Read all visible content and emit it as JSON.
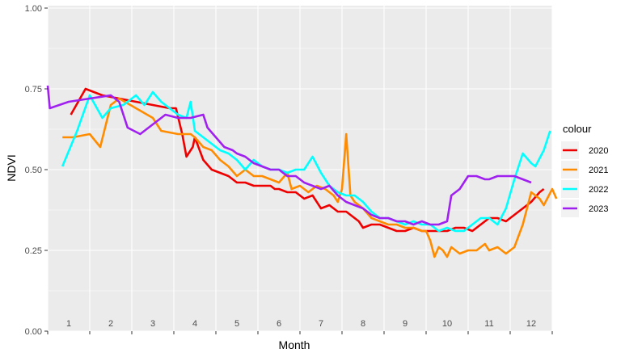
{
  "chart_data": {
    "type": "line",
    "xlabel": "Month",
    "ylabel": "NDVI",
    "xlim": [
      0.5,
      12.5
    ],
    "ylim": [
      0,
      1
    ],
    "x_ticks": [
      1,
      2,
      3,
      4,
      5,
      6,
      7,
      8,
      9,
      10,
      11,
      12
    ],
    "x_tick_labels": [
      "1",
      "2",
      "3",
      "4",
      "5",
      "6",
      "7",
      "8",
      "9",
      "10",
      "11",
      "12"
    ],
    "y_ticks": [
      0,
      0.25,
      0.5,
      0.75,
      1
    ],
    "y_tick_labels": [
      "0.00",
      "0.25",
      "0.50",
      "0.75",
      "1.00"
    ],
    "grid": true,
    "legend": {
      "title": "colour",
      "position": "right"
    },
    "series": [
      {
        "name": "2020",
        "color": "#ee0000",
        "points": [
          [
            1.05,
            0.67
          ],
          [
            1.4,
            0.75
          ],
          [
            1.8,
            0.73
          ],
          [
            2.2,
            0.72
          ],
          [
            2.6,
            0.71
          ],
          [
            3.0,
            0.7
          ],
          [
            3.4,
            0.69
          ],
          [
            3.55,
            0.69
          ],
          [
            3.7,
            0.61
          ],
          [
            3.8,
            0.54
          ],
          [
            3.95,
            0.57
          ],
          [
            4.0,
            0.6
          ],
          [
            4.2,
            0.53
          ],
          [
            4.4,
            0.5
          ],
          [
            4.6,
            0.49
          ],
          [
            4.8,
            0.48
          ],
          [
            5.0,
            0.46
          ],
          [
            5.2,
            0.46
          ],
          [
            5.4,
            0.45
          ],
          [
            5.6,
            0.45
          ],
          [
            5.8,
            0.45
          ],
          [
            5.9,
            0.44
          ],
          [
            6.0,
            0.44
          ],
          [
            6.2,
            0.43
          ],
          [
            6.4,
            0.43
          ],
          [
            6.6,
            0.41
          ],
          [
            6.8,
            0.42
          ],
          [
            7.0,
            0.38
          ],
          [
            7.2,
            0.39
          ],
          [
            7.4,
            0.37
          ],
          [
            7.6,
            0.37
          ],
          [
            7.8,
            0.35
          ],
          [
            7.9,
            0.34
          ],
          [
            8.0,
            0.32
          ],
          [
            8.2,
            0.33
          ],
          [
            8.4,
            0.33
          ],
          [
            8.6,
            0.32
          ],
          [
            8.8,
            0.31
          ],
          [
            9.0,
            0.31
          ],
          [
            9.2,
            0.32
          ],
          [
            9.4,
            0.31
          ],
          [
            9.6,
            0.31
          ],
          [
            9.8,
            0.31
          ],
          [
            10.0,
            0.31
          ],
          [
            10.2,
            0.32
          ],
          [
            10.4,
            0.32
          ],
          [
            10.6,
            0.31
          ],
          [
            10.8,
            0.33
          ],
          [
            11.0,
            0.35
          ],
          [
            11.2,
            0.35
          ],
          [
            11.4,
            0.34
          ],
          [
            11.6,
            0.36
          ],
          [
            11.8,
            0.38
          ],
          [
            12.0,
            0.4
          ],
          [
            12.2,
            0.43
          ],
          [
            12.3,
            0.44
          ]
        ]
      },
      {
        "name": "2021",
        "color": "#ff8c00",
        "points": [
          [
            0.85,
            0.6
          ],
          [
            1.1,
            0.6
          ],
          [
            1.5,
            0.61
          ],
          [
            1.75,
            0.57
          ],
          [
            2.0,
            0.7
          ],
          [
            2.2,
            0.72
          ],
          [
            2.6,
            0.69
          ],
          [
            3.0,
            0.66
          ],
          [
            3.2,
            0.62
          ],
          [
            3.6,
            0.61
          ],
          [
            3.9,
            0.61
          ],
          [
            4.0,
            0.6
          ],
          [
            4.2,
            0.57
          ],
          [
            4.4,
            0.56
          ],
          [
            4.6,
            0.53
          ],
          [
            4.8,
            0.51
          ],
          [
            5.0,
            0.48
          ],
          [
            5.2,
            0.5
          ],
          [
            5.4,
            0.48
          ],
          [
            5.6,
            0.48
          ],
          [
            5.8,
            0.47
          ],
          [
            6.0,
            0.46
          ],
          [
            6.2,
            0.49
          ],
          [
            6.3,
            0.44
          ],
          [
            6.5,
            0.45
          ],
          [
            6.7,
            0.43
          ],
          [
            6.9,
            0.45
          ],
          [
            7.1,
            0.44
          ],
          [
            7.3,
            0.42
          ],
          [
            7.4,
            0.4
          ],
          [
            7.5,
            0.44
          ],
          [
            7.6,
            0.61
          ],
          [
            7.7,
            0.42
          ],
          [
            7.8,
            0.4
          ],
          [
            8.0,
            0.38
          ],
          [
            8.2,
            0.35
          ],
          [
            8.4,
            0.34
          ],
          [
            8.6,
            0.33
          ],
          [
            8.8,
            0.33
          ],
          [
            9.0,
            0.32
          ],
          [
            9.2,
            0.32
          ],
          [
            9.4,
            0.31
          ],
          [
            9.5,
            0.31
          ],
          [
            9.6,
            0.28
          ],
          [
            9.7,
            0.23
          ],
          [
            9.8,
            0.26
          ],
          [
            9.9,
            0.25
          ],
          [
            10.0,
            0.23
          ],
          [
            10.1,
            0.26
          ],
          [
            10.3,
            0.24
          ],
          [
            10.5,
            0.25
          ],
          [
            10.7,
            0.25
          ],
          [
            10.9,
            0.27
          ],
          [
            11.0,
            0.25
          ],
          [
            11.2,
            0.26
          ],
          [
            11.4,
            0.24
          ],
          [
            11.6,
            0.26
          ],
          [
            11.8,
            0.33
          ],
          [
            12.0,
            0.43
          ],
          [
            12.2,
            0.41
          ],
          [
            12.3,
            0.39
          ],
          [
            12.5,
            0.44
          ],
          [
            12.6,
            0.41
          ]
        ]
      },
      {
        "name": "2022",
        "color": "#00ffff",
        "points": [
          [
            0.85,
            0.51
          ],
          [
            1.2,
            0.62
          ],
          [
            1.5,
            0.73
          ],
          [
            1.8,
            0.66
          ],
          [
            2.0,
            0.69
          ],
          [
            2.3,
            0.7
          ],
          [
            2.6,
            0.73
          ],
          [
            2.8,
            0.7
          ],
          [
            3.0,
            0.74
          ],
          [
            3.2,
            0.71
          ],
          [
            3.4,
            0.69
          ],
          [
            3.6,
            0.67
          ],
          [
            3.8,
            0.66
          ],
          [
            3.9,
            0.71
          ],
          [
            4.0,
            0.62
          ],
          [
            4.2,
            0.6
          ],
          [
            4.4,
            0.58
          ],
          [
            4.6,
            0.56
          ],
          [
            4.8,
            0.55
          ],
          [
            5.0,
            0.53
          ],
          [
            5.2,
            0.5
          ],
          [
            5.4,
            0.53
          ],
          [
            5.6,
            0.51
          ],
          [
            5.8,
            0.5
          ],
          [
            6.0,
            0.5
          ],
          [
            6.2,
            0.49
          ],
          [
            6.4,
            0.5
          ],
          [
            6.6,
            0.5
          ],
          [
            6.8,
            0.54
          ],
          [
            7.0,
            0.49
          ],
          [
            7.2,
            0.45
          ],
          [
            7.4,
            0.43
          ],
          [
            7.6,
            0.42
          ],
          [
            7.8,
            0.42
          ],
          [
            8.0,
            0.4
          ],
          [
            8.2,
            0.37
          ],
          [
            8.4,
            0.35
          ],
          [
            8.6,
            0.35
          ],
          [
            8.8,
            0.34
          ],
          [
            9.0,
            0.33
          ],
          [
            9.2,
            0.34
          ],
          [
            9.4,
            0.33
          ],
          [
            9.6,
            0.33
          ],
          [
            9.8,
            0.31
          ],
          [
            10.0,
            0.32
          ],
          [
            10.2,
            0.31
          ],
          [
            10.4,
            0.31
          ],
          [
            10.6,
            0.33
          ],
          [
            10.8,
            0.35
          ],
          [
            11.0,
            0.35
          ],
          [
            11.2,
            0.33
          ],
          [
            11.4,
            0.38
          ],
          [
            11.6,
            0.47
          ],
          [
            11.8,
            0.55
          ],
          [
            12.0,
            0.52
          ],
          [
            12.1,
            0.51
          ],
          [
            12.3,
            0.56
          ],
          [
            12.45,
            0.62
          ]
        ]
      },
      {
        "name": "2023",
        "color": "#a020f0",
        "points": [
          [
            0.5,
            0.76
          ],
          [
            0.55,
            0.69
          ],
          [
            1.0,
            0.71
          ],
          [
            1.5,
            0.72
          ],
          [
            2.0,
            0.73
          ],
          [
            2.2,
            0.71
          ],
          [
            2.4,
            0.63
          ],
          [
            2.7,
            0.61
          ],
          [
            3.0,
            0.64
          ],
          [
            3.3,
            0.67
          ],
          [
            3.6,
            0.66
          ],
          [
            3.9,
            0.66
          ],
          [
            4.2,
            0.67
          ],
          [
            4.3,
            0.63
          ],
          [
            4.5,
            0.6
          ],
          [
            4.7,
            0.57
          ],
          [
            4.9,
            0.56
          ],
          [
            5.0,
            0.55
          ],
          [
            5.2,
            0.54
          ],
          [
            5.4,
            0.52
          ],
          [
            5.6,
            0.51
          ],
          [
            5.8,
            0.5
          ],
          [
            6.0,
            0.5
          ],
          [
            6.2,
            0.48
          ],
          [
            6.4,
            0.48
          ],
          [
            6.6,
            0.46
          ],
          [
            6.8,
            0.45
          ],
          [
            7.0,
            0.44
          ],
          [
            7.2,
            0.45
          ],
          [
            7.4,
            0.42
          ],
          [
            7.6,
            0.4
          ],
          [
            7.8,
            0.39
          ],
          [
            8.0,
            0.38
          ],
          [
            8.2,
            0.36
          ],
          [
            8.4,
            0.35
          ],
          [
            8.6,
            0.35
          ],
          [
            8.8,
            0.34
          ],
          [
            9.0,
            0.34
          ],
          [
            9.2,
            0.33
          ],
          [
            9.4,
            0.34
          ],
          [
            9.6,
            0.33
          ],
          [
            9.8,
            0.33
          ],
          [
            10.0,
            0.34
          ],
          [
            10.1,
            0.42
          ],
          [
            10.3,
            0.44
          ],
          [
            10.5,
            0.48
          ],
          [
            10.7,
            0.48
          ],
          [
            10.9,
            0.47
          ],
          [
            11.0,
            0.47
          ],
          [
            11.2,
            0.48
          ],
          [
            11.4,
            0.48
          ],
          [
            11.6,
            0.48
          ],
          [
            11.8,
            0.47
          ],
          [
            12.0,
            0.46
          ]
        ]
      }
    ]
  }
}
